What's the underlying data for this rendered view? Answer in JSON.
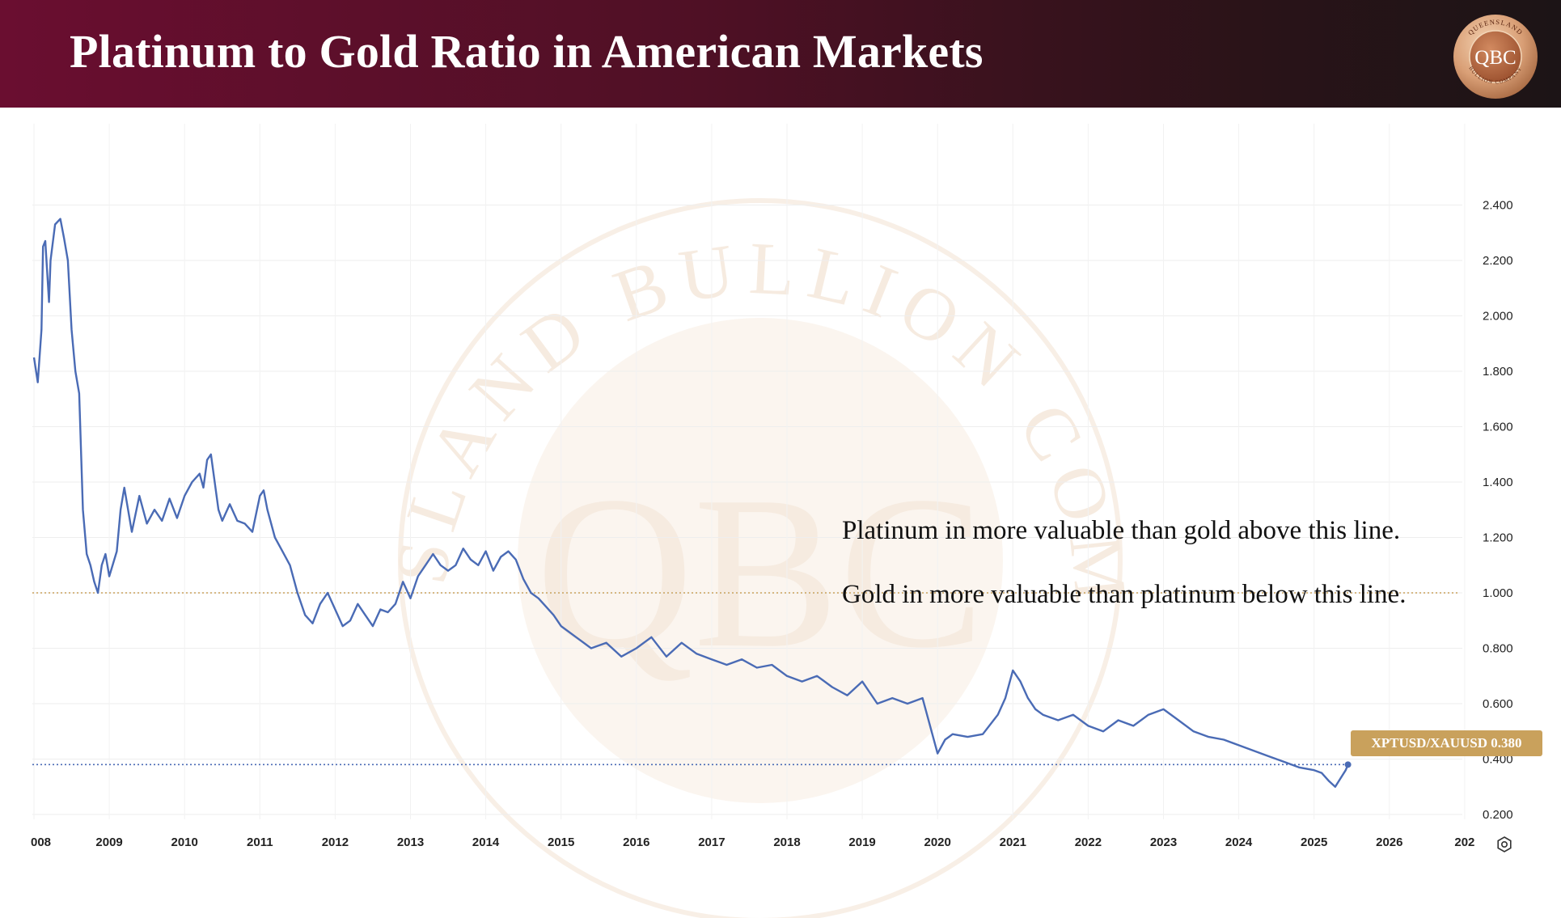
{
  "header": {
    "title": "Platinum to Gold Ratio in American Markets",
    "logo_text": "QBC",
    "logo_ring_top": "QUEENSLAND",
    "logo_ring_bottom": "BULLION COMPANY"
  },
  "watermark": {
    "center_text": "QBC",
    "ring_text": "QUEENSLAND BULLION COMPANY"
  },
  "annotations": {
    "above": "Platinum in more valuable than gold above this  line.",
    "below": "Gold in more valuable than platinum below this line."
  },
  "price_badge": "XPTUSD/XAUUSD 0.380",
  "colors": {
    "header_start": "#6a0e30",
    "line": "#4a6bb5",
    "parity_line": "#c9a15c",
    "badge": "#c9a15c"
  },
  "icons": {
    "settings": "gear-icon"
  },
  "chart_data": {
    "type": "line",
    "series_name": "XPTUSD/XAUUSD",
    "x_ticks": [
      "008",
      "2009",
      "2010",
      "2011",
      "2012",
      "2013",
      "2014",
      "2015",
      "2016",
      "2017",
      "2018",
      "2019",
      "2020",
      "2021",
      "2022",
      "2023",
      "2024",
      "2025",
      "2026",
      "202"
    ],
    "y_ticks": [
      "0.200",
      "0.400",
      "0.600",
      "0.800",
      "1.000",
      "1.200",
      "1.400",
      "1.600",
      "1.800",
      "2.000",
      "2.200",
      "2.400"
    ],
    "ylim": [
      0.2,
      2.4
    ],
    "xlim": [
      2008.0,
      2026.0
    ],
    "reference_lines": [
      {
        "value": 1.0,
        "style": "dotted",
        "color": "#c9a15c"
      },
      {
        "value": 0.38,
        "style": "dotted",
        "color": "#4a6bb5"
      }
    ],
    "last_value": 0.38,
    "x": [
      2008.0,
      2008.05,
      2008.1,
      2008.12,
      2008.15,
      2008.2,
      2008.22,
      2008.28,
      2008.35,
      2008.4,
      2008.45,
      2008.5,
      2008.55,
      2008.6,
      2008.65,
      2008.7,
      2008.75,
      2008.8,
      2008.85,
      2008.9,
      2008.95,
      2009.0,
      2009.1,
      2009.15,
      2009.2,
      2009.3,
      2009.4,
      2009.5,
      2009.6,
      2009.7,
      2009.8,
      2009.9,
      2010.0,
      2010.1,
      2010.2,
      2010.25,
      2010.3,
      2010.35,
      2010.45,
      2010.5,
      2010.6,
      2010.7,
      2010.8,
      2010.9,
      2011.0,
      2011.05,
      2011.1,
      2011.2,
      2011.3,
      2011.4,
      2011.5,
      2011.6,
      2011.7,
      2011.8,
      2011.9,
      2012.0,
      2012.1,
      2012.2,
      2012.3,
      2012.4,
      2012.5,
      2012.6,
      2012.7,
      2012.8,
      2012.9,
      2013.0,
      2013.1,
      2013.2,
      2013.3,
      2013.4,
      2013.5,
      2013.6,
      2013.7,
      2013.8,
      2013.9,
      2014.0,
      2014.1,
      2014.2,
      2014.3,
      2014.4,
      2014.5,
      2014.6,
      2014.7,
      2014.8,
      2014.9,
      2015.0,
      2015.2,
      2015.4,
      2015.6,
      2015.8,
      2016.0,
      2016.2,
      2016.4,
      2016.6,
      2016.8,
      2017.0,
      2017.2,
      2017.4,
      2017.6,
      2017.8,
      2018.0,
      2018.2,
      2018.4,
      2018.6,
      2018.8,
      2019.0,
      2019.2,
      2019.4,
      2019.6,
      2019.8,
      2020.0,
      2020.1,
      2020.15,
      2020.2,
      2020.4,
      2020.6,
      2020.8,
      2020.9,
      2021.0,
      2021.1,
      2021.2,
      2021.3,
      2021.4,
      2021.6,
      2021.8,
      2022.0,
      2022.2,
      2022.4,
      2022.6,
      2022.8,
      2023.0,
      2023.2,
      2023.4,
      2023.6,
      2023.8,
      2024.0,
      2024.2,
      2024.4,
      2024.6,
      2024.8,
      2025.0,
      2025.1,
      2025.2,
      2025.28,
      2025.35,
      2025.42,
      2025.45
    ],
    "y": [
      1.85,
      1.76,
      1.95,
      2.25,
      2.27,
      2.05,
      2.2,
      2.33,
      2.35,
      2.28,
      2.2,
      1.95,
      1.8,
      1.72,
      1.3,
      1.14,
      1.1,
      1.04,
      1.0,
      1.1,
      1.14,
      1.06,
      1.15,
      1.3,
      1.38,
      1.22,
      1.35,
      1.25,
      1.3,
      1.26,
      1.34,
      1.27,
      1.35,
      1.4,
      1.43,
      1.38,
      1.48,
      1.5,
      1.3,
      1.26,
      1.32,
      1.26,
      1.25,
      1.22,
      1.35,
      1.37,
      1.3,
      1.2,
      1.15,
      1.1,
      1.0,
      0.92,
      0.89,
      0.96,
      1.0,
      0.94,
      0.88,
      0.9,
      0.96,
      0.92,
      0.88,
      0.94,
      0.93,
      0.96,
      1.04,
      0.98,
      1.06,
      1.1,
      1.14,
      1.1,
      1.08,
      1.1,
      1.16,
      1.12,
      1.1,
      1.15,
      1.08,
      1.13,
      1.15,
      1.12,
      1.05,
      1.0,
      0.98,
      0.95,
      0.92,
      0.88,
      0.84,
      0.8,
      0.82,
      0.77,
      0.8,
      0.84,
      0.77,
      0.82,
      0.78,
      0.76,
      0.74,
      0.76,
      0.73,
      0.74,
      0.7,
      0.68,
      0.7,
      0.66,
      0.63,
      0.68,
      0.6,
      0.62,
      0.6,
      0.62,
      0.42,
      0.47,
      0.48,
      0.49,
      0.48,
      0.49,
      0.56,
      0.62,
      0.72,
      0.68,
      0.62,
      0.58,
      0.56,
      0.54,
      0.56,
      0.52,
      0.5,
      0.54,
      0.52,
      0.56,
      0.58,
      0.54,
      0.5,
      0.48,
      0.47,
      0.45,
      0.43,
      0.41,
      0.39,
      0.37,
      0.36,
      0.35,
      0.32,
      0.3,
      0.33,
      0.36,
      0.38
    ]
  }
}
